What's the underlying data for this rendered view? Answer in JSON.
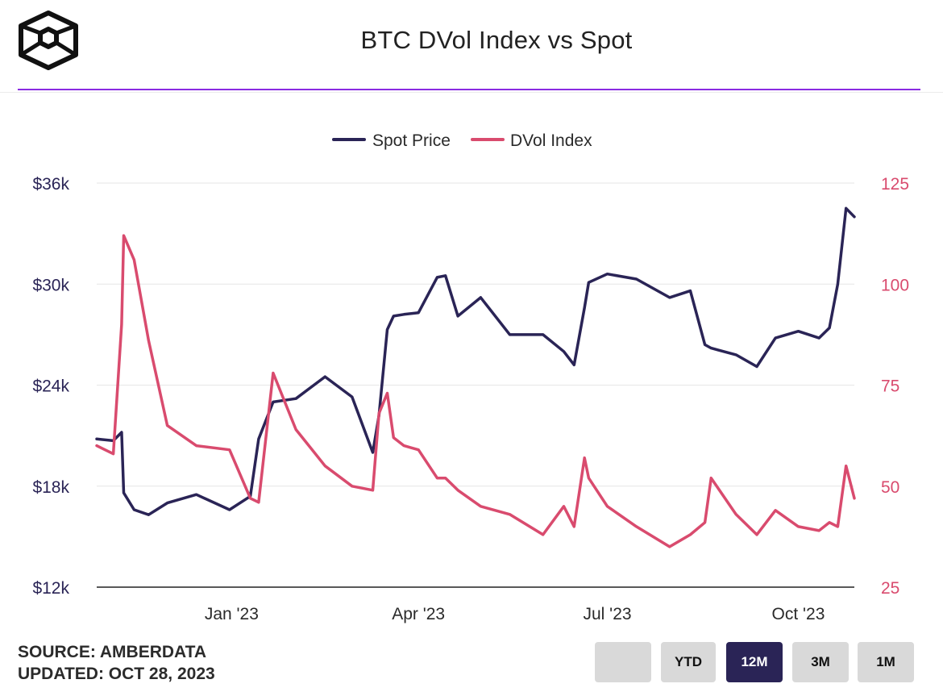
{
  "header": {
    "title": "BTC DVol Index vs Spot"
  },
  "legend": [
    {
      "label": "Spot Price",
      "color": "#2a2456"
    },
    {
      "label": "DVol Index",
      "color": "#d94b6e"
    }
  ],
  "footer": {
    "source": "SOURCE: AMBERDATA",
    "updated": "UPDATED: OCT 28, 2023"
  },
  "range_buttons": [
    {
      "label": "",
      "active": false
    },
    {
      "label": "YTD",
      "active": false
    },
    {
      "label": "12M",
      "active": true
    },
    {
      "label": "3M",
      "active": false
    },
    {
      "label": "1M",
      "active": false
    }
  ],
  "colors": {
    "spot": "#2a2456",
    "dvol": "#d94b6e",
    "accent": "#8a2be2"
  },
  "chart_data": {
    "type": "line",
    "title": "BTC DVol Index vs Spot",
    "legend_position": "top-center",
    "grid": true,
    "x_ticks": [
      "Jan '23",
      "Apr '23",
      "Jul '23",
      "Oct '23"
    ],
    "x_range": [
      "2022-10-28",
      "2023-10-28"
    ],
    "y_left": {
      "ticks": [
        "$12k",
        "$18k",
        "$24k",
        "$30k",
        "$36k"
      ],
      "range": [
        12000,
        36000
      ]
    },
    "y_right": {
      "ticks": [
        "25",
        "50",
        "75",
        "100",
        "125"
      ],
      "range": [
        25,
        125
      ]
    },
    "x": [
      "2022-10-28",
      "2022-11-05",
      "2022-11-09",
      "2022-11-10",
      "2022-11-15",
      "2022-11-22",
      "2022-12-01",
      "2022-12-15",
      "2022-12-31",
      "2023-01-10",
      "2023-01-14",
      "2023-01-21",
      "2023-02-01",
      "2023-02-15",
      "2023-02-28",
      "2023-03-10",
      "2023-03-13",
      "2023-03-17",
      "2023-03-20",
      "2023-03-25",
      "2023-04-01",
      "2023-04-10",
      "2023-04-14",
      "2023-04-20",
      "2023-05-01",
      "2023-05-15",
      "2023-05-31",
      "2023-06-10",
      "2023-06-15",
      "2023-06-20",
      "2023-06-22",
      "2023-07-01",
      "2023-07-15",
      "2023-07-31",
      "2023-08-10",
      "2023-08-17",
      "2023-08-20",
      "2023-09-01",
      "2023-09-11",
      "2023-09-20",
      "2023-10-01",
      "2023-10-11",
      "2023-10-16",
      "2023-10-20",
      "2023-10-24",
      "2023-10-28"
    ],
    "series": [
      {
        "name": "Spot Price",
        "axis": "left",
        "values": [
          20800,
          20700,
          21200,
          17600,
          16600,
          16300,
          17000,
          17500,
          16600,
          17400,
          20800,
          23000,
          23200,
          24500,
          23300,
          20000,
          22200,
          27300,
          28100,
          28200,
          28300,
          30400,
          30500,
          28100,
          29200,
          27000,
          27000,
          26000,
          25200,
          28600,
          30100,
          30600,
          30300,
          29200,
          29600,
          26400,
          26200,
          25800,
          25100,
          26800,
          27200,
          26800,
          27400,
          30000,
          34500,
          34000
        ]
      },
      {
        "name": "DVol Index",
        "axis": "right",
        "values": [
          60,
          58,
          90,
          112,
          106,
          86,
          65,
          60,
          59,
          47,
          46,
          78,
          64,
          55,
          50,
          49,
          68,
          73,
          62,
          60,
          59,
          52,
          52,
          49,
          45,
          43,
          38,
          45,
          40,
          57,
          52,
          45,
          40,
          35,
          38,
          41,
          52,
          43,
          38,
          44,
          40,
          39,
          41,
          40,
          55,
          47
        ]
      }
    ]
  }
}
